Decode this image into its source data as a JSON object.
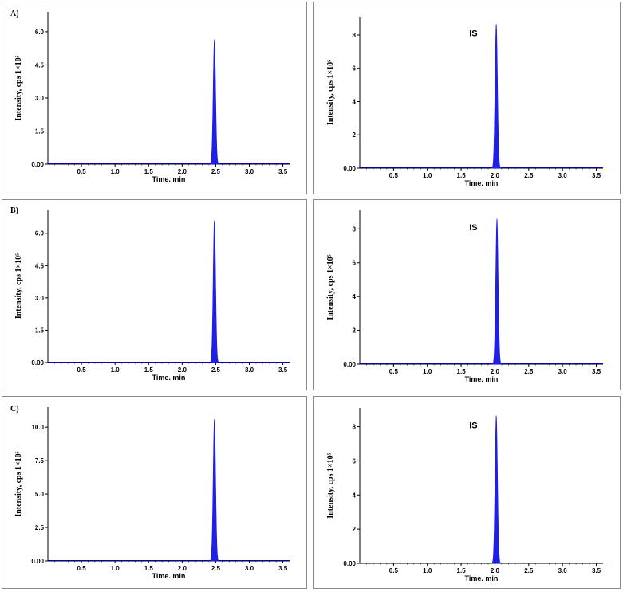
{
  "colors": {
    "peak": "#1f1fe6",
    "baseline": "#0000b0",
    "axis": "#000000",
    "frame": "#8a8a8a"
  },
  "chart_data": [
    {
      "type": "area",
      "panel_label": "A)",
      "annotation": "",
      "xlabel": "Time. min",
      "ylabel": "Intensity, cps 1×10⁵",
      "xlim": [
        0,
        3.6
      ],
      "ylim": [
        0,
        6.9
      ],
      "xticks": [
        "0.5",
        "1.0",
        "1.5",
        "2.0",
        "2.5",
        "3.0",
        "3.5"
      ],
      "yticks": [
        "0.00",
        "1.5",
        "3.0",
        "4.5",
        "6.0"
      ],
      "ytick_values": [
        0,
        1.5,
        3.0,
        4.5,
        6.0
      ],
      "peak": {
        "center": 2.48,
        "height": 5.65,
        "width": 0.018
      },
      "grid": false
    },
    {
      "type": "area",
      "panel_label": "",
      "annotation": "IS",
      "xlabel": "Time. min",
      "ylabel": "Intensity, cps 1×10⁵",
      "xlim": [
        0,
        3.6
      ],
      "ylim": [
        0,
        9.1
      ],
      "xticks": [
        "0.5",
        "1.0",
        "1.5",
        "2.0",
        "2.5",
        "3.0",
        "3.5"
      ],
      "yticks": [
        "0.00",
        "2",
        "4",
        "6",
        "8"
      ],
      "ytick_values": [
        0,
        2,
        4,
        6,
        8
      ],
      "peak": {
        "center": 2.02,
        "height": 8.65,
        "width": 0.018
      },
      "grid": false
    },
    {
      "type": "area",
      "panel_label": "B)",
      "annotation": "",
      "xlabel": "Time. min",
      "ylabel": "Intensity, cps 1×10⁵",
      "xlim": [
        0,
        3.6
      ],
      "ylim": [
        0,
        7.1
      ],
      "xticks": [
        "0.5",
        "1.0",
        "1.5",
        "2.0",
        "2.5",
        "3.0",
        "3.5"
      ],
      "yticks": [
        "0.00",
        "1.5",
        "3.0",
        "4.5",
        "6.0"
      ],
      "ytick_values": [
        0,
        1.5,
        3.0,
        4.5,
        6.0
      ],
      "peak": {
        "center": 2.48,
        "height": 6.6,
        "width": 0.018
      },
      "grid": false
    },
    {
      "type": "area",
      "panel_label": "",
      "annotation": "IS",
      "xlabel": "Time. min",
      "ylabel": "Intensity, cps 1×10⁵",
      "xlim": [
        0,
        3.6
      ],
      "ylim": [
        0,
        9.1
      ],
      "xticks": [
        "0.5",
        "1.0",
        "1.5",
        "2.0",
        "2.5",
        "3.0",
        "3.5"
      ],
      "yticks": [
        "0.00",
        "2",
        "4",
        "6",
        "8"
      ],
      "ytick_values": [
        0,
        2,
        4,
        6,
        8
      ],
      "peak": {
        "center": 2.03,
        "height": 8.6,
        "width": 0.018
      },
      "grid": false
    },
    {
      "type": "area",
      "panel_label": "C)",
      "annotation": "",
      "xlabel": "Time. min",
      "ylabel": "Intensity, cps 1×10⁵",
      "xlim": [
        0,
        3.6
      ],
      "ylim": [
        0,
        11.5
      ],
      "xticks": [
        "0.5",
        "1.0",
        "1.5",
        "2.0",
        "2.5",
        "3.0",
        "3.5"
      ],
      "yticks": [
        "0.00",
        "2.5",
        "5.0",
        "7.5",
        "10.0"
      ],
      "ytick_values": [
        0,
        2.5,
        5.0,
        7.5,
        10.0
      ],
      "peak": {
        "center": 2.48,
        "height": 10.6,
        "width": 0.018
      },
      "grid": false
    },
    {
      "type": "area",
      "panel_label": "",
      "annotation": "IS",
      "xlabel": "Time. min",
      "ylabel": "Intensity, cps 1×10⁵",
      "xlim": [
        0,
        3.6
      ],
      "ylim": [
        0,
        9.1
      ],
      "xticks": [
        "0.5",
        "1.0",
        "1.5",
        "2.0",
        "2.5",
        "3.0",
        "3.5"
      ],
      "yticks": [
        "0.00",
        "2",
        "4",
        "6",
        "8"
      ],
      "ytick_values": [
        0,
        2,
        4,
        6,
        8
      ],
      "peak": {
        "center": 2.02,
        "height": 8.65,
        "width": 0.018
      },
      "grid": false
    }
  ]
}
